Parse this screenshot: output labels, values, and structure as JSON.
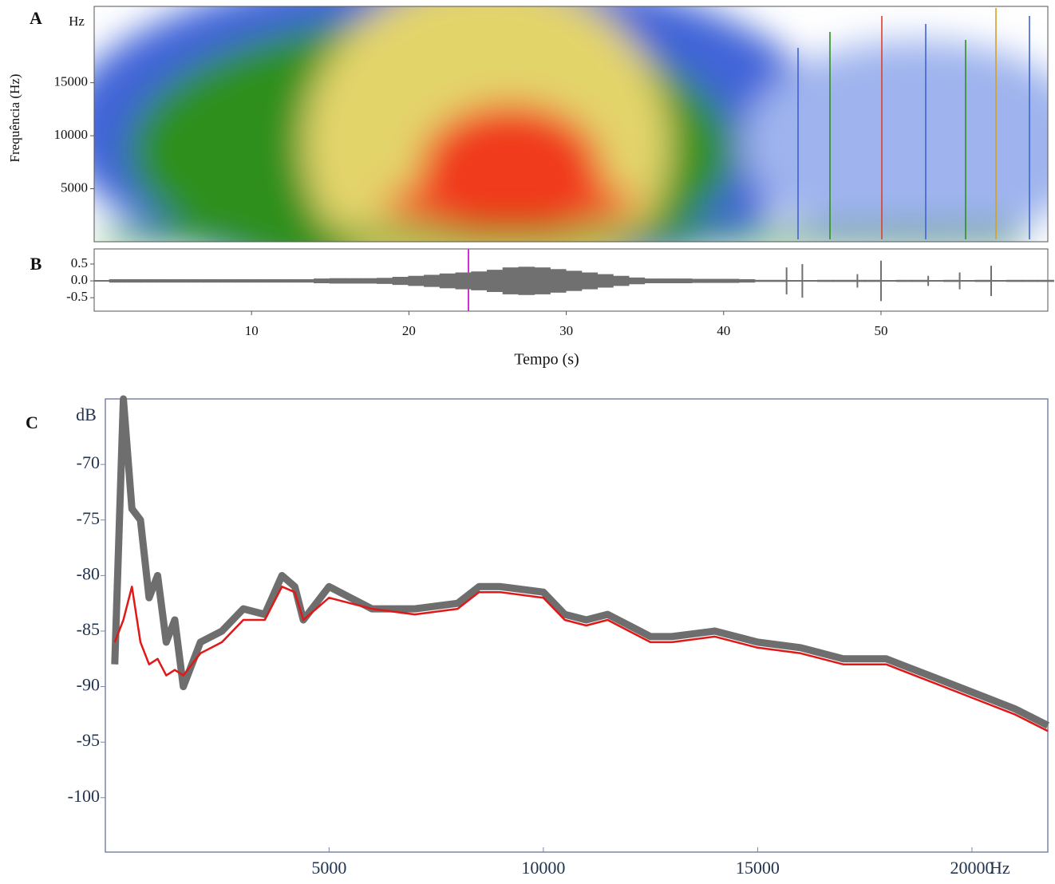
{
  "chart_data": [
    {
      "type": "spectrogram",
      "panel_label": "A",
      "y_unit": "Hz",
      "ylabel": "Frequência (Hz)",
      "xlim": [
        0,
        60.6
      ],
      "ylim": [
        0,
        22200
      ],
      "yticks": [
        5000,
        10000,
        15000
      ]
    },
    {
      "type": "waveform",
      "panel_label": "B",
      "xlabel": "Tempo (s)",
      "color": "#707070",
      "xlim": [
        0,
        60.6
      ],
      "xticks": [
        10,
        20,
        30,
        40,
        50
      ],
      "ylim": [
        -0.9,
        0.95
      ],
      "yticks": [
        0.5,
        {
          "value": 0,
          "label": "0.0"
        },
        -0.5
      ],
      "x": [
        1,
        2,
        3,
        4,
        5,
        6,
        7,
        8,
        9,
        10,
        11,
        12,
        13,
        14,
        15,
        16,
        17,
        18,
        19,
        20,
        21,
        22,
        23,
        24,
        25,
        26,
        27,
        28,
        29,
        30,
        31,
        32,
        33,
        34,
        35,
        36,
        37,
        38,
        39,
        40,
        41,
        42,
        43,
        44,
        45,
        46,
        47,
        48,
        48.5,
        49,
        50,
        51,
        52,
        53,
        54,
        55,
        56,
        57,
        58,
        59,
        60
      ],
      "values": [
        0.05,
        0.05,
        0.05,
        0.05,
        0.05,
        0.05,
        0.05,
        0.05,
        0.05,
        0.05,
        0.05,
        0.05,
        0.05,
        0.07,
        0.08,
        0.08,
        0.08,
        0.09,
        0.12,
        0.15,
        0.18,
        0.22,
        0.25,
        0.28,
        0.33,
        0.4,
        0.42,
        0.4,
        0.35,
        0.3,
        0.25,
        0.2,
        0.15,
        0.1,
        0.07,
        0.07,
        0.07,
        0.06,
        0.06,
        0.06,
        0.05,
        0.03,
        0.03,
        0.4,
        0.5,
        0.03,
        0.03,
        0.03,
        0.2,
        0.03,
        0.6,
        0.03,
        0.03,
        0.15,
        0.03,
        0.25,
        0.03,
        0.45,
        0.03,
        0.03,
        0.03
      ]
    },
    {
      "type": "line",
      "panel_label": "C",
      "y_unit": "dB",
      "x_unit": "Hz",
      "xlim": [
        -220,
        21770
      ],
      "xticks": [
        5000,
        10000,
        15000,
        20000
      ],
      "ylim": [
        -104.9,
        -64.1
      ],
      "yticks": [
        -70,
        -75,
        -80,
        -85,
        -90,
        -95,
        -100
      ],
      "x": [
        0,
        200,
        400,
        600,
        800,
        1000,
        1200,
        1400,
        1600,
        2000,
        2500,
        3000,
        3500,
        3900,
        4200,
        4400,
        5000,
        5500,
        6000,
        7000,
        8000,
        8500,
        9000,
        10000,
        10500,
        11000,
        11500,
        12000,
        12500,
        13000,
        14000,
        15000,
        16000,
        17000,
        18000,
        19000,
        20000,
        21000,
        21770
      ],
      "series": [
        {
          "color": "#6e6e6e",
          "values": [
            -88,
            -64,
            -74,
            -75,
            -82,
            -80,
            -86,
            -84,
            -90,
            -86,
            -85,
            -83,
            -83.5,
            -80,
            -81,
            -84,
            -81,
            -82,
            -83,
            -83,
            -82.5,
            -81,
            -81,
            -81.5,
            -83.5,
            -84,
            -83.5,
            -84.5,
            -85.5,
            -85.5,
            -85,
            -86,
            -86.5,
            -87.5,
            -87.5,
            -89,
            -90.5,
            -92,
            -93.5
          ]
        },
        {
          "color": "#e01818",
          "values": [
            -86,
            -84,
            -81,
            -86,
            -88,
            -87.5,
            -89,
            -88.5,
            -89,
            -87,
            -86,
            -84,
            -84,
            -81,
            -81.5,
            -84,
            -82,
            -82.5,
            -83,
            -83.5,
            -83,
            -81.5,
            -81.5,
            -82,
            -84,
            -84.5,
            -84,
            -85,
            -86,
            -86,
            -85.5,
            -86.5,
            -87,
            -88,
            -88,
            -89.5,
            -91,
            -92.5,
            -94
          ]
        }
      ]
    }
  ]
}
